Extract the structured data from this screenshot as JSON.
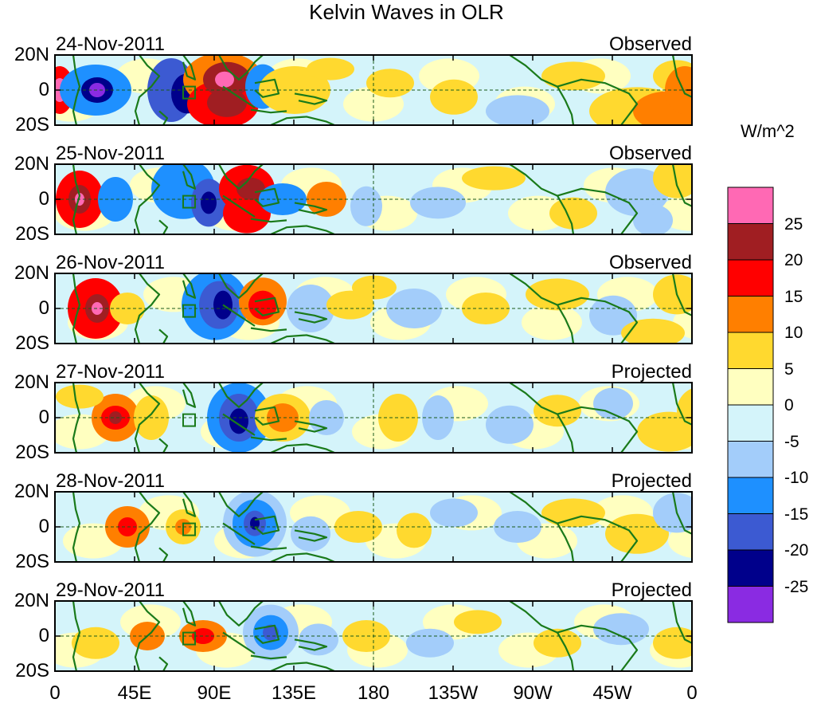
{
  "title": "Kelvin Waves in OLR",
  "panels": [
    {
      "date": "24-Nov-2011",
      "kind": "Observed"
    },
    {
      "date": "25-Nov-2011",
      "kind": "Observed"
    },
    {
      "date": "26-Nov-2011",
      "kind": "Observed"
    },
    {
      "date": "27-Nov-2011",
      "kind": "Projected"
    },
    {
      "date": "28-Nov-2011",
      "kind": "Projected"
    },
    {
      "date": "29-Nov-2011",
      "kind": "Projected"
    }
  ],
  "y_axis": {
    "ticks": [
      "20N",
      "0",
      "20S"
    ]
  },
  "x_axis": {
    "ticks": [
      "0",
      "45E",
      "90E",
      "135E",
      "180",
      "135W",
      "90W",
      "45W",
      "0"
    ]
  },
  "colorbar": {
    "units": "W/m^2",
    "labels": [
      "25",
      "20",
      "15",
      "10",
      "5",
      "0",
      "-5",
      "-10",
      "-15",
      "-20",
      "-25"
    ],
    "colors": [
      "#ff69b4",
      "#a01e22",
      "#ff0000",
      "#ff7f00",
      "#ffd92f",
      "#ffffc0",
      "#d4f4fa",
      "#a3cdfa",
      "#1e90ff",
      "#3c5ad2",
      "#00008b",
      "#8a2be2"
    ]
  },
  "colors": {
    "coast": "#1a7a1a",
    "axis": "#000000"
  }
}
